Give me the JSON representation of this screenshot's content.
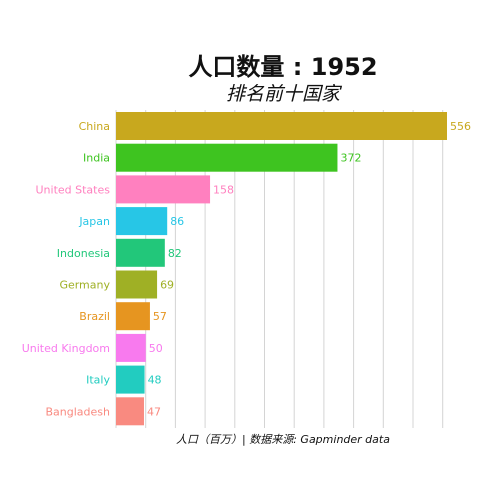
{
  "chart_data": {
    "type": "bar",
    "orientation": "horizontal",
    "title": "人口数量 : 1952",
    "subtitle": "排名前十国家",
    "caption": "人口（百万）| 数据来源: Gapminder data",
    "categories": [
      "China",
      "India",
      "United States",
      "Japan",
      "Indonesia",
      "Germany",
      "Brazil",
      "United Kingdom",
      "Italy",
      "Bangladesh"
    ],
    "values": [
      556,
      372,
      158,
      86,
      82,
      69,
      57,
      50,
      48,
      47
    ],
    "colors": [
      "#c8a81e",
      "#3ec420",
      "#ff80bf",
      "#27c6e6",
      "#22c77a",
      "#9fb025",
      "#e69520",
      "#f87aee",
      "#22ccc0",
      "#f98a80"
    ],
    "xlim": [
      0,
      556
    ],
    "grid": true,
    "legend": "none"
  }
}
